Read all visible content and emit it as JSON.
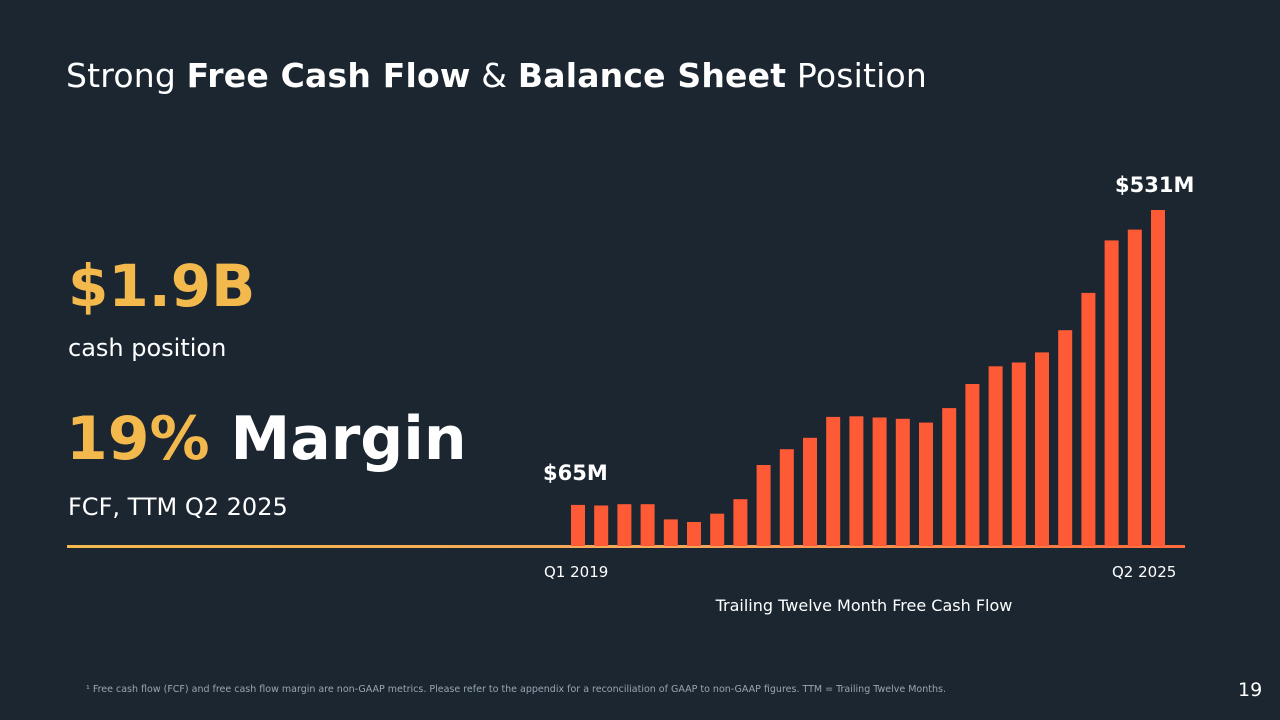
{
  "slide": {
    "title_parts": [
      "Strong ",
      "Free Cash Flow",
      " & ",
      "Balance Sheet",
      " Position"
    ],
    "page_number": "19",
    "footnote": "¹ Free cash flow (FCF) and free cash flow margin are non-GAAP metrics. Please refer to the appendix for a reconciliation of GAAP to non-GAAP figures. TTM = Trailing Twelve Months."
  },
  "metrics": {
    "cash_value": "$1.9B",
    "cash_label": "cash position",
    "margin_pct": "19%",
    "margin_word": "Margin",
    "margin_label": "FCF, TTM Q2 2025"
  },
  "colors": {
    "background": "#1b2631",
    "accent_yellow": "#f3b94d",
    "bar_orange": "#ff5a36"
  },
  "chart_data": {
    "type": "bar",
    "title": "",
    "xlabel": "Trailing Twelve Month Free Cash Flow",
    "ylabel": "",
    "ylim": [
      0,
      531
    ],
    "unit": "$M",
    "x_tick_labels": [
      "Q1 2019",
      "Q2 2025"
    ],
    "first_label": "$65M",
    "last_label": "$531M",
    "values": [
      65,
      64,
      66,
      66,
      42,
      38,
      51,
      74,
      128,
      153,
      171,
      204,
      205,
      203,
      201,
      195,
      218,
      256,
      284,
      290,
      306,
      341,
      400,
      483,
      500,
      531
    ]
  }
}
